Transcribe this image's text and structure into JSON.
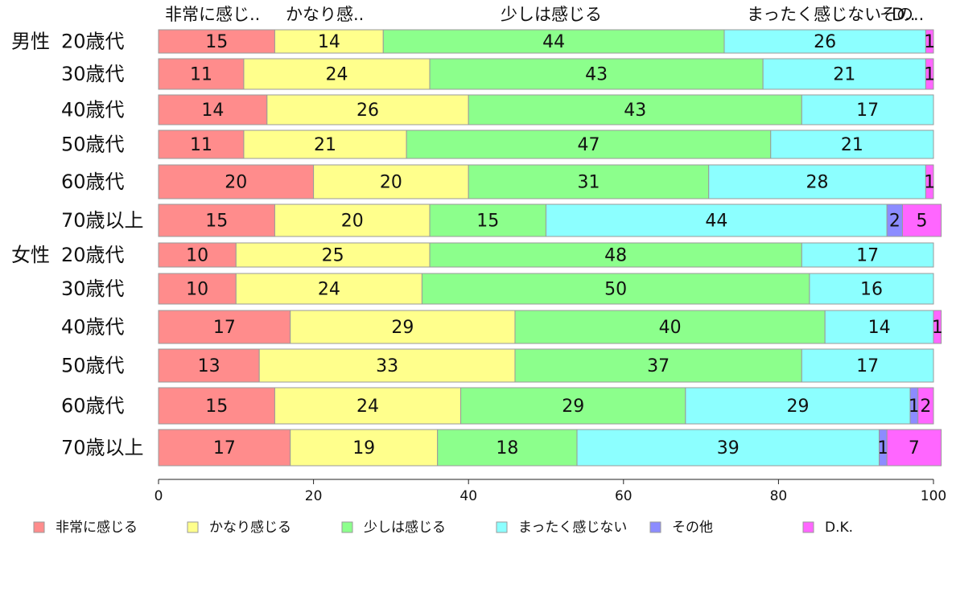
{
  "chart_data": {
    "type": "bar",
    "orientation": "horizontal",
    "stacked": true,
    "xlim": [
      0,
      100
    ],
    "x_ticks": [
      "0",
      "20",
      "40",
      "60",
      "80",
      "100"
    ],
    "top_labels": [
      "非常に感じ..",
      "かなり感..",
      "少しは感じる",
      "まったく感じない",
      "その..",
      "D.."
    ],
    "groups": [
      {
        "label": "男性",
        "rows": [
          0,
          5
        ]
      },
      {
        "label": "女性",
        "rows": [
          6,
          11
        ]
      }
    ],
    "categories": [
      "20歳代",
      "30歳代",
      "40歳代",
      "50歳代",
      "60歳代",
      "70歳以上",
      "20歳代",
      "30歳代",
      "40歳代",
      "50歳代",
      "60歳代",
      "70歳以上"
    ],
    "series": [
      {
        "name": "非常に感じる",
        "color": "#ff8c8c",
        "values": [
          15,
          11,
          14,
          11,
          20,
          15,
          10,
          10,
          17,
          13,
          15,
          17
        ]
      },
      {
        "name": "かなり感じる",
        "color": "#ffff8c",
        "values": [
          14,
          24,
          26,
          21,
          20,
          20,
          25,
          24,
          29,
          33,
          24,
          19
        ]
      },
      {
        "name": "少しは感じる",
        "color": "#8cff8c",
        "values": [
          44,
          43,
          43,
          47,
          31,
          15,
          48,
          50,
          40,
          37,
          29,
          18
        ]
      },
      {
        "name": "まったく感じない",
        "color": "#8cffff",
        "values": [
          26,
          21,
          17,
          21,
          28,
          44,
          17,
          16,
          14,
          17,
          29,
          39
        ]
      },
      {
        "name": "その他",
        "color": "#8c8cff",
        "values": [
          0,
          0,
          0,
          0,
          0,
          2,
          0,
          0,
          0,
          0,
          1,
          1
        ]
      },
      {
        "name": "D.K.",
        "color": "#ff66ff",
        "values": [
          1,
          1,
          0,
          0,
          1,
          5,
          0,
          0,
          1,
          0,
          2,
          7
        ]
      }
    ]
  }
}
